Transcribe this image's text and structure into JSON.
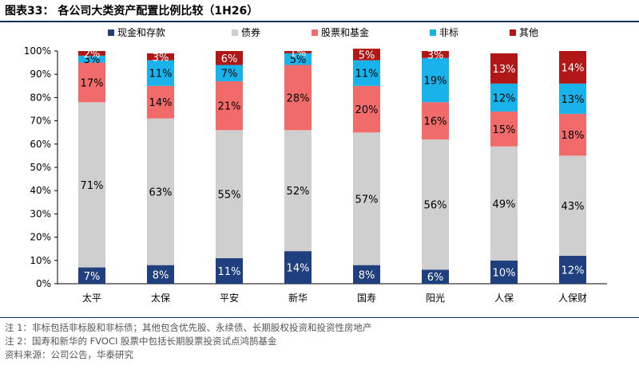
{
  "title": "图表33： 各公司大类资产配置比例比较（1H26）",
  "notes": [
    "注 1：非标包括非标股和非标债；其他包含优先股、永续债、长期股权投资和投资性房地产",
    "注 2：国寿和新华的 FVOCI 股票中包括长期股票投资试点鸿鹄基金",
    "资料来源：公司公告，华泰研究"
  ],
  "chart_data": {
    "type": "bar",
    "stacked": true,
    "categories": [
      "太平",
      "太保",
      "平安",
      "新华",
      "国寿",
      "阳光",
      "人保",
      "人保财"
    ],
    "ylim": [
      0,
      100
    ],
    "yticks": [
      "0%",
      "10%",
      "20%",
      "30%",
      "40%",
      "50%",
      "60%",
      "70%",
      "80%",
      "90%",
      "100%"
    ],
    "legend_position": "top",
    "series": [
      {
        "name": "现金和存款",
        "color": "#1f3f7f",
        "label_color": "#ffffff",
        "values": [
          7,
          8,
          11,
          14,
          8,
          6,
          10,
          12
        ],
        "labels": [
          "7%",
          "8%",
          "11%",
          "14%",
          "8%",
          "6%",
          "10%",
          "12%"
        ]
      },
      {
        "name": "债券",
        "color": "#cfcfcf",
        "label_color": "#000000",
        "values": [
          71,
          63,
          55,
          52,
          57,
          56,
          49,
          43
        ],
        "labels": [
          "71%",
          "63%",
          "55%",
          "52%",
          "57%",
          "56%",
          "49%",
          "43%"
        ]
      },
      {
        "name": "股票和基金",
        "color": "#f26b6b",
        "label_color": "#000000",
        "values": [
          17,
          14,
          21,
          28,
          20,
          16,
          15,
          18
        ],
        "labels": [
          "17%",
          "14%",
          "21%",
          "28%",
          "20%",
          "16%",
          "15%",
          "18%"
        ]
      },
      {
        "name": "非标",
        "color": "#19b2ea",
        "label_color": "#000000",
        "values": [
          3,
          11,
          7,
          5,
          11,
          19,
          12,
          13
        ],
        "labels": [
          "3%",
          "11%",
          "7%",
          "5%",
          "11%",
          "19%",
          "12%",
          "13%"
        ]
      },
      {
        "name": "其他",
        "color": "#b01818",
        "label_color": "#ffffff",
        "values": [
          2,
          3,
          6,
          1,
          5,
          3,
          13,
          14
        ],
        "labels": [
          "2%",
          "3%",
          "6%",
          "1%",
          "5%",
          "3%",
          "13%",
          "14%"
        ]
      }
    ]
  }
}
